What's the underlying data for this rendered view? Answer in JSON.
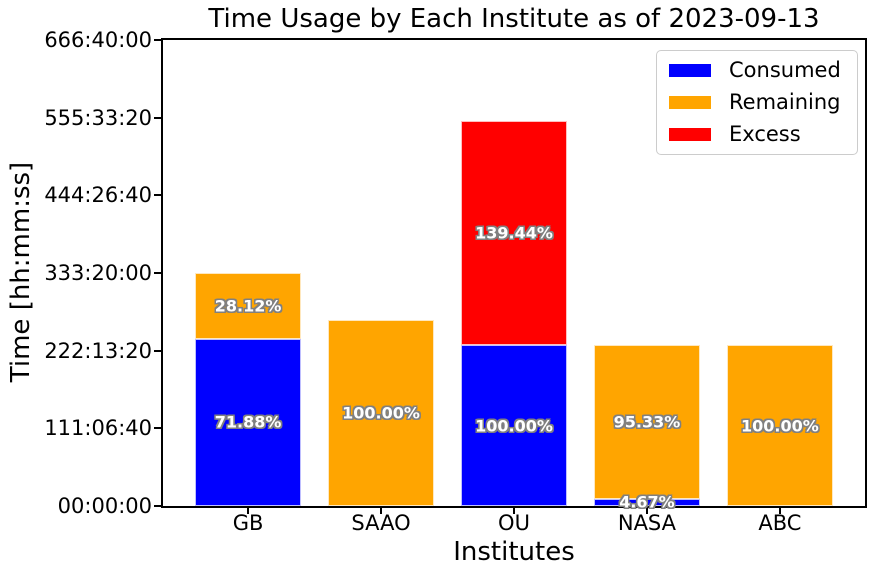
{
  "chart_data": {
    "type": "bar",
    "stacked": true,
    "title": "Time Usage by Each Institute as of 2023-09-13",
    "xlabel": "Institutes",
    "ylabel": "Time [hh:mm:ss]",
    "categories": [
      "GB",
      "SAAO",
      "OU",
      "NASA",
      "ABC"
    ],
    "grid": false,
    "legend_position": "upper right",
    "ylim_seconds": [
      0,
      2400000
    ],
    "yticks": [
      {
        "label": "00:00:00",
        "seconds": 0
      },
      {
        "label": "111:06:40",
        "seconds": 400000
      },
      {
        "label": "222:13:20",
        "seconds": 800000
      },
      {
        "label": "333:20:00",
        "seconds": 1200000
      },
      {
        "label": "444:26:40",
        "seconds": 1600000
      },
      {
        "label": "555:33:20",
        "seconds": 2000000
      },
      {
        "label": "666:40:00",
        "seconds": 2400000
      }
    ],
    "legend": [
      {
        "label": "Consumed",
        "color": "#0000ff"
      },
      {
        "label": "Remaining",
        "color": "#ffa500"
      },
      {
        "label": "Excess",
        "color": "#ff0000"
      }
    ],
    "bars": [
      {
        "category": "GB",
        "segments": [
          {
            "series": "Consumed",
            "color": "#0000ff",
            "value_seconds": 862560,
            "label": "71.88%"
          },
          {
            "series": "Remaining",
            "color": "#ffa500",
            "value_seconds": 337440,
            "label": "28.12%"
          }
        ]
      },
      {
        "category": "SAAO",
        "segments": [
          {
            "series": "Remaining",
            "color": "#ffa500",
            "value_seconds": 960000,
            "label": "100.00%"
          }
        ]
      },
      {
        "category": "OU",
        "segments": [
          {
            "series": "Consumed",
            "color": "#0000ff",
            "value_seconds": 828000,
            "label": "100.00%"
          },
          {
            "series": "Excess",
            "color": "#ff0000",
            "value_seconds": 1154563,
            "label": "139.44%"
          }
        ]
      },
      {
        "category": "NASA",
        "segments": [
          {
            "series": "Consumed",
            "color": "#0000ff",
            "value_seconds": 38668,
            "label": "4.67%"
          },
          {
            "series": "Remaining",
            "color": "#ffa500",
            "value_seconds": 789332,
            "label": "95.33%"
          }
        ]
      },
      {
        "category": "ABC",
        "segments": [
          {
            "series": "Remaining",
            "color": "#ffa500",
            "value_seconds": 828000,
            "label": "100.00%"
          }
        ]
      }
    ]
  }
}
